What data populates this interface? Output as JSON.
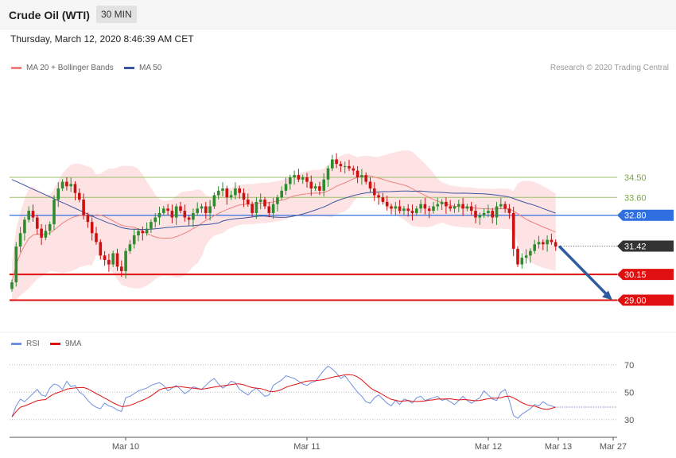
{
  "header": {
    "title": "Crude Oil (WTI)",
    "timeframe": "30 MIN"
  },
  "date": "Thursday, March 12, 2020 8:46:39 AM CET",
  "legend": {
    "ma20": "MA 20 + Bollinger Bands",
    "ma50": "MA 50"
  },
  "credit": "Research © 2020 Trading Central",
  "rsi_legend": {
    "rsi": "RSI",
    "ma9": "9MA"
  },
  "colors": {
    "up": "#2e8b2e",
    "down": "#cc1111",
    "band": "#fde0e0",
    "ma20": "#f08080",
    "ma50": "#3b55a0",
    "support": "#e01010",
    "resistance": "#9bc26b",
    "pivot": "#2f6fe0",
    "arrow": "#2f5c9f",
    "rsi": "#6f8fe0",
    "rsi_ma": "#e01010"
  },
  "chart_data": {
    "type": "candlestick",
    "ylim": [
      27.7,
      38.7
    ],
    "x_ticks": [
      "Mar 10",
      "Mar 11",
      "Mar 12",
      "Mar 13",
      "Mar 27"
    ],
    "levels": [
      {
        "value": 34.5,
        "label": "34.50",
        "kind": "resistance"
      },
      {
        "value": 33.6,
        "label": "33.60",
        "kind": "resistance"
      },
      {
        "value": 32.8,
        "label": "32.80",
        "kind": "pivot"
      },
      {
        "value": 31.42,
        "label": "31.42",
        "kind": "last"
      },
      {
        "value": 30.15,
        "label": "30.15",
        "kind": "support"
      },
      {
        "value": 29.0,
        "label": "29.00",
        "kind": "support"
      }
    ],
    "projection": {
      "from": 31.42,
      "to": 29.0
    },
    "close": [
      29.8,
      31.4,
      32.0,
      32.6,
      33.0,
      32.7,
      32.2,
      31.8,
      32.1,
      32.4,
      33.5,
      34.0,
      34.3,
      34.1,
      34.2,
      33.8,
      33.5,
      32.8,
      32.5,
      32.0,
      31.6,
      31.0,
      30.8,
      30.6,
      31.1,
      30.5,
      30.3,
      31.2,
      31.5,
      31.9,
      32.1,
      32.0,
      32.2,
      32.5,
      32.7,
      32.9,
      33.1,
      33.0,
      32.7,
      33.2,
      33.0,
      32.7,
      32.6,
      32.9,
      33.1,
      33.2,
      32.9,
      33.2,
      33.7,
      33.9,
      34.0,
      33.6,
      33.7,
      34.0,
      33.8,
      33.5,
      33.3,
      32.9,
      33.4,
      33.5,
      33.2,
      32.9,
      33.3,
      33.6,
      33.9,
      34.2,
      34.5,
      34.6,
      34.4,
      34.5,
      34.3,
      34.0,
      34.1,
      33.9,
      34.4,
      34.9,
      35.3,
      35.1,
      35.0,
      35.0,
      34.9,
      34.8,
      34.5,
      34.6,
      34.3,
      34.0,
      33.7,
      33.6,
      33.4,
      33.2,
      33.1,
      33.2,
      33.0,
      33.1,
      33.0,
      32.9,
      33.1,
      33.3,
      33.1,
      33.0,
      33.2,
      33.3,
      33.4,
      33.2,
      33.1,
      33.2,
      33.3,
      33.1,
      33.2,
      33.0,
      32.7,
      32.8,
      32.9,
      33.0,
      32.7,
      33.2,
      33.3,
      33.1,
      32.9,
      31.3,
      30.6,
      30.9,
      31.0,
      31.2,
      31.5,
      31.6,
      31.5,
      31.7,
      31.6,
      31.4
    ],
    "rsi": [
      32,
      40,
      45,
      43,
      46,
      49,
      52,
      48,
      47,
      53,
      56,
      55,
      52,
      58,
      54,
      55,
      50,
      48,
      44,
      41,
      39,
      38,
      42,
      40,
      39,
      37,
      36,
      46,
      47,
      49,
      51,
      52,
      53,
      55,
      56,
      57,
      55,
      51,
      53,
      55,
      52,
      49,
      51,
      54,
      53,
      52,
      55,
      58,
      60,
      56,
      53,
      55,
      58,
      57,
      52,
      50,
      48,
      51,
      53,
      50,
      47,
      48,
      55,
      57,
      59,
      62,
      61,
      60,
      58,
      56,
      55,
      57,
      58,
      62,
      66,
      69,
      67,
      64,
      60,
      62,
      58,
      54,
      50,
      47,
      43,
      42,
      46,
      48,
      45,
      42,
      40,
      44,
      41,
      45,
      44,
      42,
      46,
      47,
      44,
      45,
      46,
      47,
      44,
      45,
      43,
      41,
      44,
      47,
      44,
      42,
      44,
      46,
      51,
      48,
      45,
      44,
      50,
      52,
      44,
      33,
      31,
      34,
      36,
      38,
      41,
      40,
      43,
      41,
      40,
      39
    ],
    "rsi_ylim": [
      20,
      78
    ],
    "rsi_levels": [
      70,
      50,
      30
    ]
  }
}
